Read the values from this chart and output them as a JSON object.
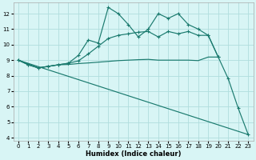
{
  "xlabel": "Humidex (Indice chaleur)",
  "xlim": [
    -0.5,
    23.5
  ],
  "ylim": [
    3.8,
    12.7
  ],
  "yticks": [
    4,
    5,
    6,
    7,
    8,
    9,
    10,
    11,
    12
  ],
  "xticks": [
    0,
    1,
    2,
    3,
    4,
    5,
    6,
    7,
    8,
    9,
    10,
    11,
    12,
    13,
    14,
    15,
    16,
    17,
    18,
    19,
    20,
    21,
    22,
    23
  ],
  "background_color": "#d8f5f5",
  "grid_color": "#b0dede",
  "line_color": "#1a7a6e",
  "line1_x": [
    0,
    1,
    2,
    3,
    4,
    5,
    6,
    7,
    8,
    9,
    10,
    11,
    12,
    13,
    14,
    15,
    16,
    17,
    18,
    19,
    20,
    21,
    22,
    23
  ],
  "line1_y": [
    9.0,
    8.7,
    8.5,
    8.6,
    8.7,
    8.8,
    9.3,
    10.3,
    10.1,
    12.4,
    12.0,
    11.3,
    10.5,
    11.0,
    12.0,
    11.7,
    12.0,
    11.3,
    11.0,
    10.6,
    9.2,
    7.8,
    5.9,
    4.2
  ],
  "line2_x": [
    0,
    1,
    2,
    3,
    4,
    5,
    6,
    7,
    8,
    9,
    10,
    11,
    12,
    13,
    14,
    15,
    16,
    17,
    18,
    19,
    20
  ],
  "line2_y": [
    9.0,
    8.7,
    8.5,
    8.6,
    8.7,
    8.8,
    8.95,
    9.4,
    9.9,
    10.4,
    10.6,
    10.7,
    10.8,
    10.85,
    10.5,
    10.85,
    10.7,
    10.85,
    10.6,
    10.6,
    9.2
  ],
  "line3_x": [
    0,
    1,
    2,
    3,
    4,
    5,
    6,
    7,
    8,
    9,
    10,
    11,
    12,
    13,
    14,
    15,
    16,
    17,
    18,
    19,
    20
  ],
  "line3_y": [
    9.0,
    8.75,
    8.5,
    8.6,
    8.7,
    8.72,
    8.78,
    8.82,
    8.87,
    8.92,
    8.97,
    9.0,
    9.03,
    9.05,
    9.0,
    9.0,
    9.0,
    9.0,
    8.97,
    9.2,
    9.2
  ],
  "line4_x": [
    0,
    23
  ],
  "line4_y": [
    9.0,
    4.2
  ]
}
